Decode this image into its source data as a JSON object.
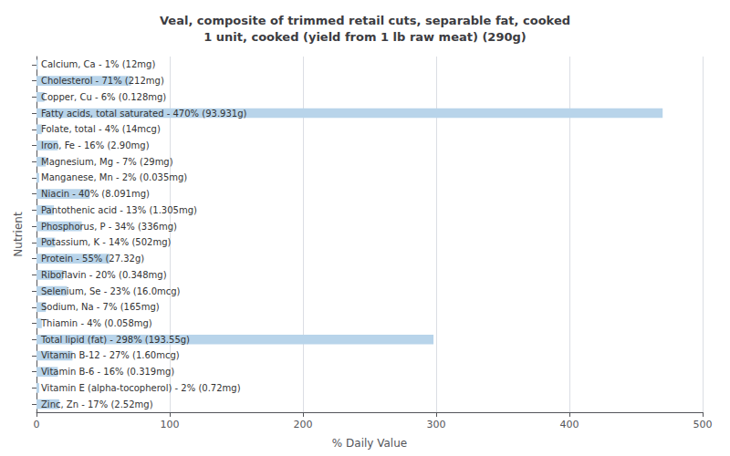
{
  "chart_data": {
    "type": "bar",
    "orientation": "horizontal",
    "title": "Veal, composite of trimmed retail cuts, separable fat, cooked\n1 unit, cooked (yield from 1 lb raw meat) (290g)",
    "xlabel": "% Daily Value",
    "ylabel": "Nutrient",
    "categories": [
      "Calcium, Ca - 1% (12mg)",
      "Cholesterol - 71% (212mg)",
      "Copper, Cu - 6% (0.128mg)",
      "Fatty acids, total saturated - 470% (93.931g)",
      "Folate, total - 4% (14mcg)",
      "Iron, Fe - 16% (2.90mg)",
      "Magnesium, Mg - 7% (29mg)",
      "Manganese, Mn - 2% (0.035mg)",
      "Niacin - 40% (8.091mg)",
      "Pantothenic acid - 13% (1.305mg)",
      "Phosphorus, P - 34% (336mg)",
      "Potassium, K - 14% (502mg)",
      "Protein - 55% (27.32g)",
      "Riboflavin - 20% (0.348mg)",
      "Selenium, Se - 23% (16.0mcg)",
      "Sodium, Na - 7% (165mg)",
      "Thiamin - 4% (0.058mg)",
      "Total lipid (fat) - 298% (193.55g)",
      "Vitamin B-12 - 27% (1.60mcg)",
      "Vitamin B-6 - 16% (0.319mg)",
      "Vitamin E (alpha-tocopherol) - 2% (0.72mg)",
      "Zinc, Zn - 17% (2.52mg)"
    ],
    "values": [
      1,
      71,
      6,
      470,
      4,
      16,
      7,
      2,
      40,
      13,
      34,
      14,
      55,
      20,
      23,
      7,
      4,
      298,
      27,
      16,
      2,
      17
    ],
    "color": "#b8d4ea",
    "xlim": [
      0,
      500
    ],
    "xticks": [
      0,
      100,
      200,
      300,
      400,
      500
    ],
    "grid": true,
    "tick_labels": "x"
  }
}
